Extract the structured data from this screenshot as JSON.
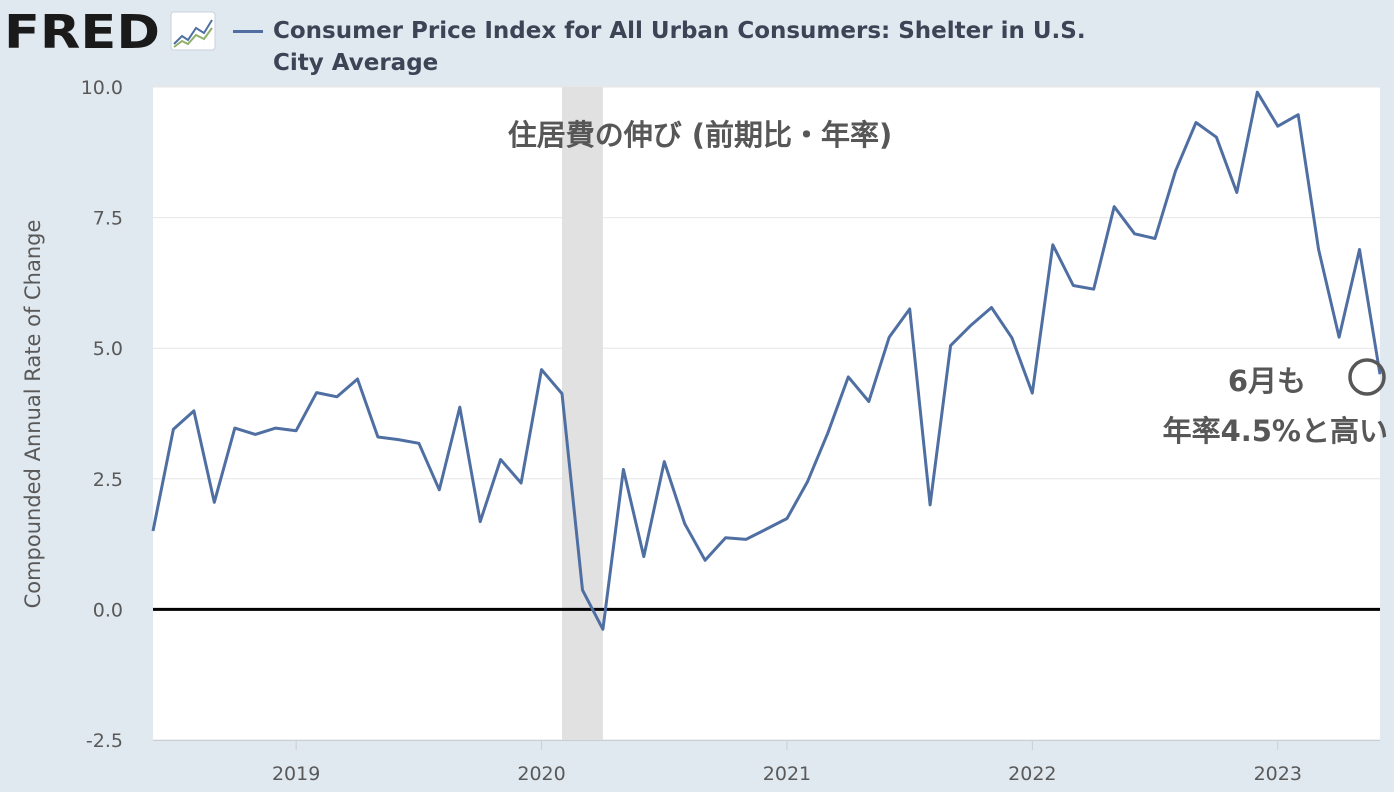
{
  "header": {
    "logo_text": "FRED",
    "series_title": "Consumer Price Index for All Urban Consumers: Shelter in U.S. City Average"
  },
  "colors": {
    "background": "#e1e9f0",
    "plot_background": "#ffffff",
    "series_line": "#4f6fa3",
    "recession_band": "#e1e1e1",
    "zero_line": "#000000",
    "annotation_text": "#575757"
  },
  "annotations": {
    "title_jp": "住居費の伸び (前期比・年率)",
    "note_line1": "6月も",
    "note_line2": "年率4.5%と高い",
    "circle_icon": "circle-marker-icon"
  },
  "chart_data": {
    "type": "line",
    "title": "Consumer Price Index for All Urban Consumers: Shelter in U.S. City Average",
    "xlabel": "",
    "ylabel": "Compounded Annual Rate of Change",
    "ylim": [
      -2.5,
      10.0
    ],
    "yticks": [
      "10.0",
      "7.5",
      "5.0",
      "2.5",
      "0.0",
      "-2.5"
    ],
    "ytick_values": [
      10.0,
      7.5,
      5.0,
      2.5,
      0.0,
      -2.5
    ],
    "xticks": [
      "2019",
      "2020",
      "2021",
      "2022",
      "2023"
    ],
    "xtick_dates": [
      "2019-01",
      "2020-01",
      "2021-01",
      "2022-01",
      "2023-01"
    ],
    "xlim": [
      "2018-06",
      "2023-06"
    ],
    "grid": true,
    "recession": {
      "start": "2020-02",
      "end": "2020-04"
    },
    "series": [
      {
        "name": "Consumer Price Index for All Urban Consumers: Shelter in U.S. City Average",
        "x": [
          "2018-06",
          "2018-07",
          "2018-08",
          "2018-09",
          "2018-10",
          "2018-11",
          "2018-12",
          "2019-01",
          "2019-02",
          "2019-03",
          "2019-04",
          "2019-05",
          "2019-06",
          "2019-07",
          "2019-08",
          "2019-09",
          "2019-10",
          "2019-11",
          "2019-12",
          "2020-01",
          "2020-02",
          "2020-03",
          "2020-04",
          "2020-05",
          "2020-06",
          "2020-07",
          "2020-08",
          "2020-09",
          "2020-10",
          "2020-11",
          "2020-12",
          "2021-01",
          "2021-02",
          "2021-03",
          "2021-04",
          "2021-05",
          "2021-06",
          "2021-07",
          "2021-08",
          "2021-09",
          "2021-10",
          "2021-11",
          "2021-12",
          "2022-01",
          "2022-02",
          "2022-03",
          "2022-04",
          "2022-05",
          "2022-06",
          "2022-07",
          "2022-08",
          "2022-09",
          "2022-10",
          "2022-11",
          "2022-12",
          "2023-01",
          "2023-02",
          "2023-03",
          "2023-04",
          "2023-05",
          "2023-06"
        ],
        "values": [
          1.5,
          3.45,
          3.8,
          2.05,
          3.47,
          3.35,
          3.47,
          3.42,
          4.15,
          4.07,
          4.41,
          3.3,
          3.25,
          3.18,
          2.29,
          3.87,
          1.68,
          2.87,
          2.42,
          4.59,
          4.13,
          0.37,
          -0.38,
          2.68,
          1.01,
          2.83,
          1.64,
          0.94,
          1.37,
          1.34,
          1.54,
          1.74,
          2.44,
          3.38,
          4.45,
          3.98,
          5.21,
          5.75,
          2.0,
          5.05,
          5.44,
          5.78,
          5.2,
          4.14,
          6.98,
          6.2,
          6.13,
          7.71,
          7.19,
          7.1,
          8.39,
          9.32,
          9.04,
          7.98,
          9.9,
          9.25,
          9.47,
          6.89,
          5.21,
          6.89,
          4.5
        ]
      }
    ]
  }
}
